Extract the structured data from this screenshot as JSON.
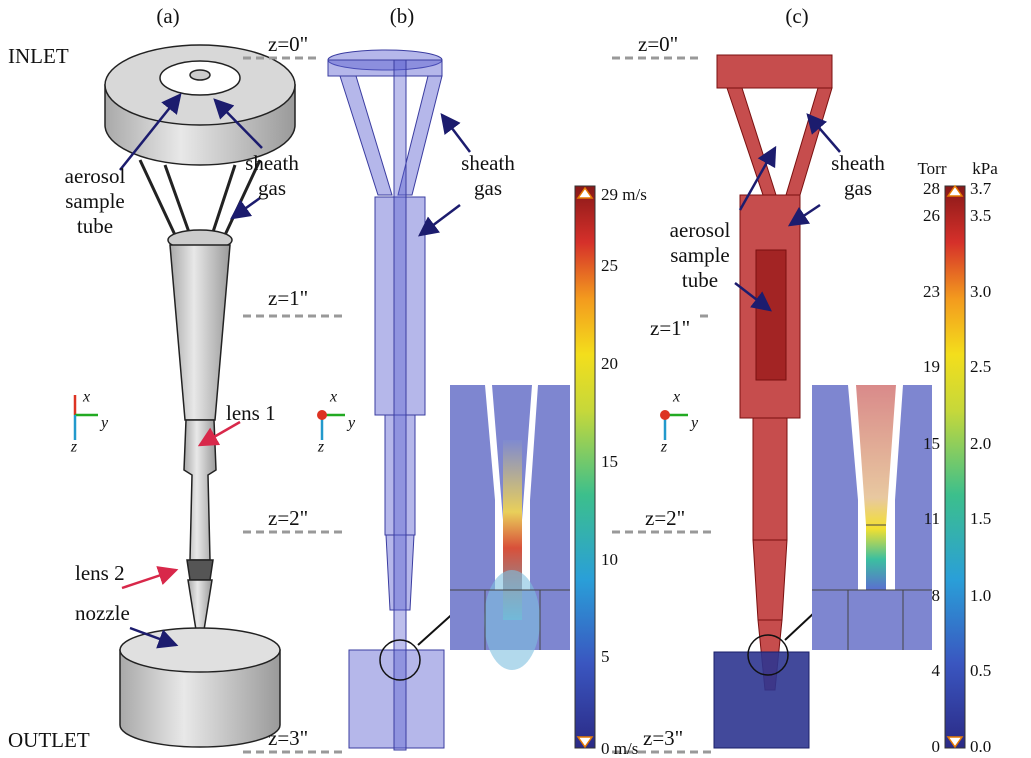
{
  "panels": [
    {
      "label": "(a)",
      "inlet": "INLET",
      "outlet": "OUTLET",
      "aerosol_label": [
        "aerosol",
        "sample",
        "tube"
      ],
      "sheath_label": [
        "sheath",
        "gas"
      ],
      "lens1": "lens 1",
      "lens2": "lens 2",
      "nozzle": "nozzle",
      "axes": [
        "x",
        "y",
        "z"
      ]
    },
    {
      "label": "(b)",
      "z_labels": [
        "z=0\"",
        "z=1\"",
        "z=2\"",
        "z=3\""
      ],
      "sheath_label": [
        "sheath",
        "gas"
      ],
      "axes": [
        "x",
        "y",
        "z"
      ],
      "colorbar": {
        "ticks": [
          "29 m/s",
          "25",
          "20",
          "15",
          "10",
          "5",
          "0 m/s"
        ]
      }
    },
    {
      "label": "(c)",
      "z_labels": [
        "z=0\"",
        "z=1\"",
        "z=2\"",
        "z=3\""
      ],
      "aerosol_label": [
        "aerosol",
        "sample",
        "tube"
      ],
      "sheath_label": [
        "sheath",
        "gas"
      ],
      "axes": [
        "x",
        "y",
        "z"
      ],
      "colorbar": {
        "unit_left": "Torr",
        "unit_right": "kPa",
        "ticks_left": [
          "28",
          "26",
          "23",
          "19",
          "15",
          "11",
          "8",
          "4",
          "0"
        ],
        "ticks_right": [
          "3.7",
          "3.5",
          "3.0",
          "2.5",
          "2.0",
          "1.5",
          "1.0",
          "0.5",
          "0.0"
        ]
      }
    }
  ]
}
